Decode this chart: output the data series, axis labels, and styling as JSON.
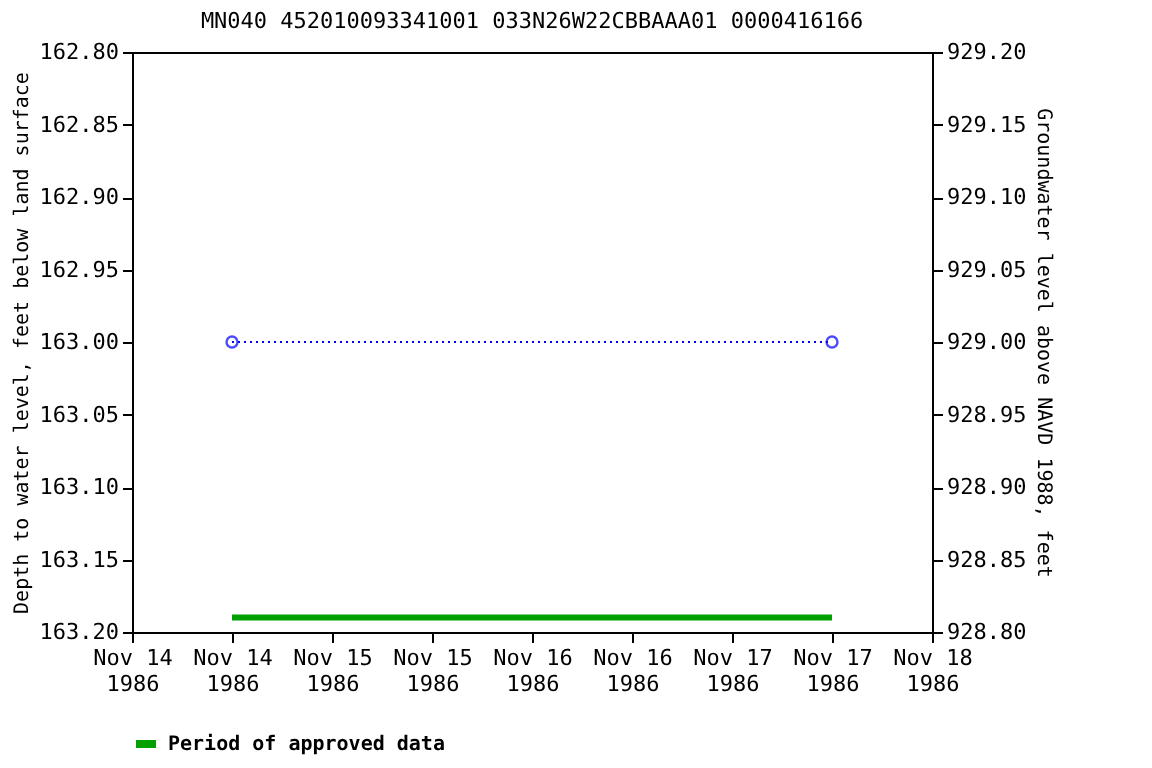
{
  "chart_data": {
    "type": "line",
    "title": "MN040 452010093341001 033N26W22CBBAAA01 0000416166",
    "ylabel": "Depth to water level, feet below land surface",
    "y2label": "Groundwater level above NAVD 1988, feet",
    "xlim": [
      "1986-11-14T00:00",
      "1986-11-18T00:00"
    ],
    "xticks": [
      {
        "value": "1986-11-14T00:00",
        "label": "Nov 14\n1986"
      },
      {
        "value": "1986-11-14T12:00",
        "label": "Nov 14\n1986"
      },
      {
        "value": "1986-11-15T00:00",
        "label": "Nov 15\n1986"
      },
      {
        "value": "1986-11-15T12:00",
        "label": "Nov 15\n1986"
      },
      {
        "value": "1986-11-16T00:00",
        "label": "Nov 16\n1986"
      },
      {
        "value": "1986-11-16T12:00",
        "label": "Nov 16\n1986"
      },
      {
        "value": "1986-11-17T00:00",
        "label": "Nov 17\n1986"
      },
      {
        "value": "1986-11-17T12:00",
        "label": "Nov 17\n1986"
      },
      {
        "value": "1986-11-18T00:00",
        "label": "Nov 18\n1986"
      }
    ],
    "ylim": [
      163.2,
      162.8
    ],
    "yticks": [
      {
        "value": 162.8,
        "label": "162.80"
      },
      {
        "value": 162.85,
        "label": "162.85"
      },
      {
        "value": 162.9,
        "label": "162.90"
      },
      {
        "value": 162.95,
        "label": "162.95"
      },
      {
        "value": 163.0,
        "label": "163.00"
      },
      {
        "value": 163.05,
        "label": "163.05"
      },
      {
        "value": 163.1,
        "label": "163.10"
      },
      {
        "value": 163.15,
        "label": "163.15"
      },
      {
        "value": 163.2,
        "label": "163.20"
      }
    ],
    "y2lim": [
      928.8,
      929.2
    ],
    "y2ticks": [
      {
        "value": 928.8,
        "label": "928.80"
      },
      {
        "value": 928.85,
        "label": "928.85"
      },
      {
        "value": 928.9,
        "label": "928.90"
      },
      {
        "value": 928.95,
        "label": "928.95"
      },
      {
        "value": 929.0,
        "label": "929.00"
      },
      {
        "value": 929.05,
        "label": "929.05"
      },
      {
        "value": 929.1,
        "label": "929.10"
      },
      {
        "value": 929.15,
        "label": "929.15"
      },
      {
        "value": 929.2,
        "label": "929.20"
      }
    ],
    "grid": false,
    "legend": "bottom",
    "series": [
      {
        "color": "#0000ff",
        "x": [
          "1986-11-14T12:00",
          "1986-11-17T12:00"
        ],
        "values": [
          163.0,
          163.0
        ],
        "marker": "circle",
        "line_style": "dotted"
      },
      {
        "name": "Period of approved data",
        "color": "#00a000",
        "x": [
          "1986-11-14T12:00",
          "1986-11-17T12:00"
        ],
        "values": [
          163.19,
          163.19
        ],
        "marker": "none",
        "line_style": "solid"
      }
    ]
  }
}
